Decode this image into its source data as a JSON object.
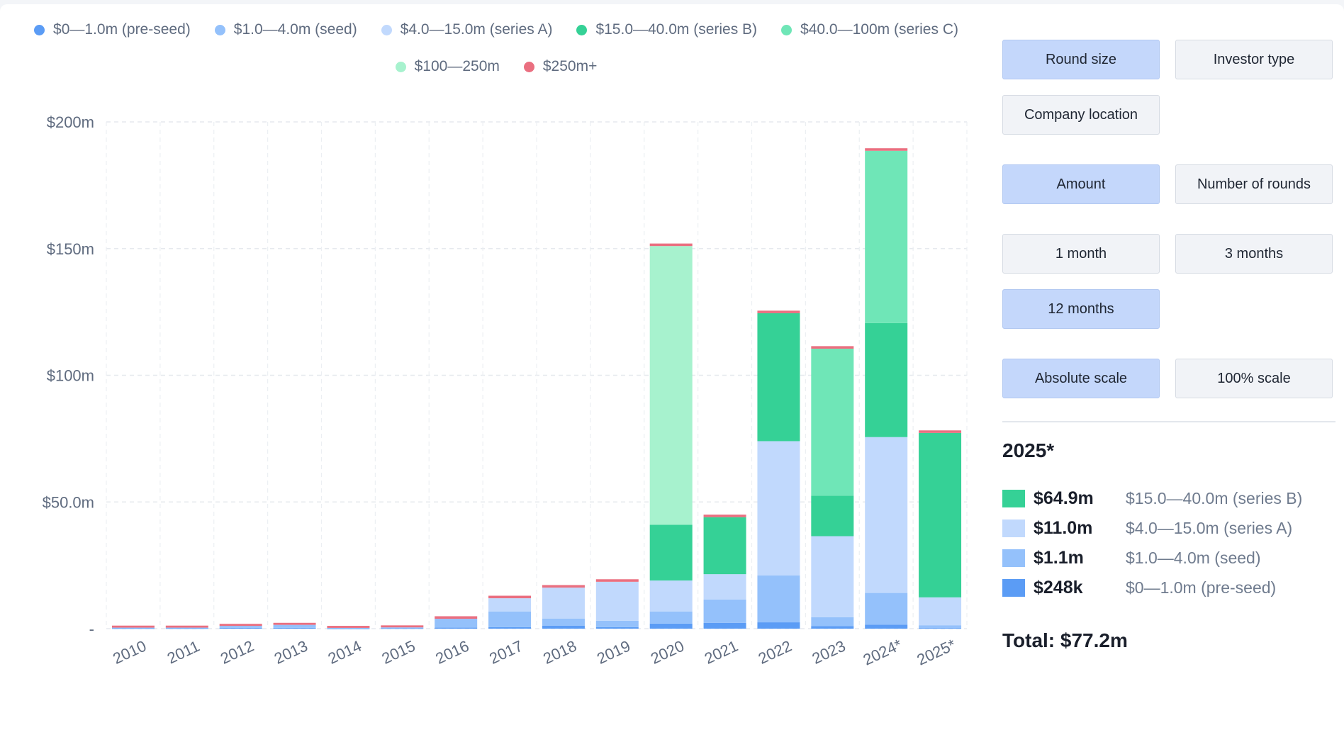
{
  "colors": {
    "preseed": "#5b9cf5",
    "seed": "#94c1fb",
    "seriesA": "#c1d9fd",
    "seriesB": "#35d196",
    "seriesC": "#6fe6b7",
    "r100_250": "#a7f2ce",
    "r250plus": "#ea6f80"
  },
  "legend": [
    {
      "label": "$0—1.0m (pre-seed)",
      "color": "#5b9cf5"
    },
    {
      "label": "$1.0—4.0m (seed)",
      "color": "#94c1fb"
    },
    {
      "label": "$4.0—15.0m (series A)",
      "color": "#c1d9fd"
    },
    {
      "label": "$15.0—40.0m (series B)",
      "color": "#35d196"
    },
    {
      "label": "$40.0—100m (series C)",
      "color": "#6fe6b7"
    },
    {
      "label": "$100—250m",
      "color": "#a7f2ce"
    },
    {
      "label": "$250m+",
      "color": "#ea6f80"
    }
  ],
  "chart_data": {
    "type": "bar",
    "stacked": true,
    "categories": [
      "2010",
      "2011",
      "2012",
      "2013",
      "2014",
      "2015",
      "2016",
      "2017",
      "2018",
      "2019",
      "2020",
      "2021",
      "2022",
      "2023",
      "2024*",
      "2025*"
    ],
    "ylim": [
      0,
      200
    ],
    "yticks": [
      {
        "value": 0,
        "label": "-"
      },
      {
        "value": 50,
        "label": "$50.0m"
      },
      {
        "value": 100,
        "label": "$100m"
      },
      {
        "value": 150,
        "label": "$150m"
      },
      {
        "value": 200,
        "label": "$200m"
      }
    ],
    "grid": true,
    "series": [
      {
        "name": "$0—1.0m (pre-seed)",
        "color": "#5b9cf5",
        "values": [
          0.2,
          0.2,
          0.3,
          0.3,
          0.1,
          0.2,
          0.4,
          0.6,
          1.2,
          0.6,
          2.0,
          2.3,
          2.5,
          1.0,
          1.6,
          0.248
        ]
      },
      {
        "name": "$1.0—4.0m (seed)",
        "color": "#94c1fb",
        "values": [
          0.2,
          0.2,
          0.8,
          1.2,
          0.2,
          0.3,
          3.5,
          6.2,
          2.8,
          2.5,
          4.8,
          9.2,
          18.5,
          3.5,
          12.5,
          1.1
        ]
      },
      {
        "name": "$4.0—15.0m (series A)",
        "color": "#c1d9fd",
        "values": [
          0,
          0,
          0,
          0,
          0,
          0,
          0,
          5.2,
          12.2,
          15.4,
          12.2,
          10.0,
          53.0,
          32.0,
          61.5,
          11.0
        ]
      },
      {
        "name": "$15.0—40.0m (series B)",
        "color": "#35d196",
        "values": [
          0,
          0,
          0,
          0,
          0,
          0,
          0,
          0,
          0,
          0,
          22.0,
          22.5,
          50.5,
          16.0,
          45.0,
          64.9
        ]
      },
      {
        "name": "$40.0—100m (series C)",
        "color": "#6fe6b7",
        "values": [
          0,
          0,
          0,
          0,
          0,
          0,
          0,
          0,
          0,
          0,
          0,
          0,
          0,
          58.0,
          68.0,
          0
        ]
      },
      {
        "name": "$100—250m",
        "color": "#a7f2ce",
        "values": [
          0,
          0,
          0,
          0,
          0,
          0,
          0,
          0,
          0,
          0,
          110.0,
          0,
          0,
          0,
          0,
          0
        ]
      },
      {
        "name": "$250m+",
        "color": "#ea6f80",
        "values": [
          0.8,
          0.8,
          0.8,
          0.8,
          0.8,
          0.8,
          1.0,
          1.0,
          1.0,
          1.0,
          1.0,
          1.0,
          1.0,
          1.0,
          1.0,
          1.0
        ]
      }
    ]
  },
  "controls": {
    "group1": [
      "Round size",
      "Investor type",
      "Company location"
    ],
    "group2": [
      "Amount",
      "Number of rounds"
    ],
    "group3": [
      "1 month",
      "3 months",
      "12 months"
    ],
    "group4": [
      "Absolute scale",
      "100% scale"
    ],
    "active": [
      "Round size",
      "Amount",
      "12 months",
      "Absolute scale"
    ]
  },
  "detail": {
    "year": "2025*",
    "rows": [
      {
        "amount": "$64.9m",
        "label": "$15.0—40.0m (series B)",
        "color": "#35d196"
      },
      {
        "amount": "$11.0m",
        "label": "$4.0—15.0m (series A)",
        "color": "#c1d9fd"
      },
      {
        "amount": "$1.1m",
        "label": "$1.0—4.0m (seed)",
        "color": "#94c1fb"
      },
      {
        "amount": "$248k",
        "label": "$0—1.0m (pre-seed)",
        "color": "#5b9cf5"
      }
    ],
    "total": "Total: $77.2m"
  }
}
